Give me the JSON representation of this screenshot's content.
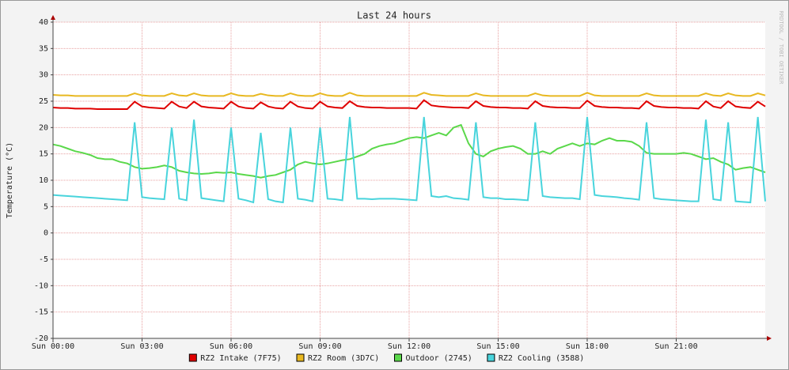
{
  "chart_data": {
    "type": "line",
    "title": "Last 24 hours",
    "y_label": "Temperature (°C)",
    "watermark": "RRDTOOL / TOBI OETIKER",
    "xlim": [
      0,
      24
    ],
    "xticks": [
      {
        "value": 0,
        "label": "Sun 00:00"
      },
      {
        "value": 3,
        "label": "Sun 03:00"
      },
      {
        "value": 6,
        "label": "Sun 06:00"
      },
      {
        "value": 9,
        "label": "Sun 09:00"
      },
      {
        "value": 12,
        "label": "Sun 12:00"
      },
      {
        "value": 15,
        "label": "Sun 15:00"
      },
      {
        "value": 18,
        "label": "Sun 18:00"
      },
      {
        "value": 21,
        "label": "Sun 21:00"
      }
    ],
    "ylim": [
      -20,
      40
    ],
    "yticks": [
      -20,
      -15,
      -10,
      -5,
      0,
      5,
      10,
      15,
      20,
      25,
      30,
      35,
      40
    ],
    "grid": true,
    "legend": "bottom",
    "x": [
      0,
      0.25,
      0.5,
      0.75,
      1,
      1.25,
      1.5,
      1.75,
      2,
      2.25,
      2.5,
      2.75,
      3,
      3.25,
      3.5,
      3.75,
      4,
      4.25,
      4.5,
      4.75,
      5,
      5.25,
      5.5,
      5.75,
      6,
      6.25,
      6.5,
      6.75,
      7,
      7.25,
      7.5,
      7.75,
      8,
      8.25,
      8.5,
      8.75,
      9,
      9.25,
      9.5,
      9.75,
      10,
      10.25,
      10.5,
      10.75,
      11,
      11.25,
      11.5,
      11.75,
      12,
      12.25,
      12.5,
      12.75,
      13,
      13.25,
      13.5,
      13.75,
      14,
      14.25,
      14.5,
      14.75,
      15,
      15.25,
      15.5,
      15.75,
      16,
      16.25,
      16.5,
      16.75,
      17,
      17.25,
      17.5,
      17.75,
      18,
      18.25,
      18.5,
      18.75,
      19,
      19.25,
      19.5,
      19.75,
      20,
      20.25,
      20.5,
      20.75,
      21,
      21.25,
      21.5,
      21.75,
      22,
      22.25,
      22.5,
      22.75,
      23,
      23.25,
      23.5,
      23.75,
      24
    ],
    "series": [
      {
        "name": "RZ2 Intake (7F75)",
        "color": "#e00000",
        "values": [
          23.8,
          23.7,
          23.7,
          23.6,
          23.6,
          23.6,
          23.5,
          23.5,
          23.5,
          23.5,
          23.5,
          24.9,
          24.0,
          23.8,
          23.7,
          23.6,
          24.9,
          24.0,
          23.7,
          24.9,
          24.0,
          23.8,
          23.7,
          23.6,
          24.9,
          24.0,
          23.7,
          23.6,
          24.8,
          24.0,
          23.7,
          23.6,
          24.9,
          24.0,
          23.7,
          23.6,
          24.9,
          24.0,
          23.8,
          23.7,
          25.0,
          24.1,
          23.9,
          23.8,
          23.8,
          23.7,
          23.7,
          23.7,
          23.7,
          23.6,
          25.2,
          24.2,
          24.0,
          23.9,
          23.8,
          23.8,
          23.7,
          25.0,
          24.1,
          23.9,
          23.8,
          23.8,
          23.7,
          23.7,
          23.6,
          25.0,
          24.1,
          23.9,
          23.8,
          23.8,
          23.7,
          23.7,
          25.1,
          24.1,
          23.9,
          23.8,
          23.8,
          23.7,
          23.7,
          23.6,
          25.0,
          24.1,
          23.9,
          23.8,
          23.8,
          23.7,
          23.7,
          23.6,
          25.0,
          24.0,
          23.7,
          25.0,
          24.0,
          23.8,
          23.7,
          24.9,
          24.0
        ]
      },
      {
        "name": "RZ2 Room (3D7C)",
        "color": "#e8b820",
        "values": [
          26.2,
          26.1,
          26.1,
          26.0,
          26.0,
          26.0,
          26.0,
          26.0,
          26.0,
          26.0,
          26.0,
          26.5,
          26.1,
          26.0,
          26.0,
          26.0,
          26.5,
          26.1,
          26.0,
          26.5,
          26.1,
          26.0,
          26.0,
          26.0,
          26.5,
          26.1,
          26.0,
          26.0,
          26.4,
          26.1,
          26.0,
          26.0,
          26.5,
          26.1,
          26.0,
          26.0,
          26.5,
          26.1,
          26.0,
          26.0,
          26.6,
          26.1,
          26.0,
          26.0,
          26.0,
          26.0,
          26.0,
          26.0,
          26.0,
          26.0,
          26.6,
          26.2,
          26.1,
          26.0,
          26.0,
          26.0,
          26.0,
          26.5,
          26.1,
          26.0,
          26.0,
          26.0,
          26.0,
          26.0,
          26.0,
          26.5,
          26.1,
          26.0,
          26.0,
          26.0,
          26.0,
          26.0,
          26.6,
          26.1,
          26.0,
          26.0,
          26.0,
          26.0,
          26.0,
          26.0,
          26.5,
          26.1,
          26.0,
          26.0,
          26.0,
          26.0,
          26.0,
          26.0,
          26.5,
          26.1,
          26.0,
          26.5,
          26.1,
          26.0,
          26.0,
          26.5,
          26.1
        ]
      },
      {
        "name": "Outdoor (2745)",
        "color": "#5ad84a",
        "values": [
          16.8,
          16.5,
          16.0,
          15.5,
          15.2,
          14.8,
          14.2,
          14.0,
          14.0,
          13.5,
          13.2,
          12.5,
          12.2,
          12.3,
          12.5,
          12.8,
          12.5,
          11.8,
          11.5,
          11.3,
          11.2,
          11.3,
          11.5,
          11.4,
          11.5,
          11.2,
          11.0,
          10.8,
          10.5,
          10.8,
          11.0,
          11.5,
          12.0,
          13.0,
          13.5,
          13.2,
          13.0,
          13.2,
          13.5,
          13.8,
          14.0,
          14.5,
          15.0,
          16.0,
          16.5,
          16.8,
          17.0,
          17.5,
          18.0,
          18.2,
          18.0,
          18.5,
          19.0,
          18.5,
          20.0,
          20.5,
          17.0,
          15.0,
          14.5,
          15.5,
          16.0,
          16.3,
          16.5,
          16.0,
          15.0,
          15.0,
          15.5,
          15.0,
          16.0,
          16.5,
          17.0,
          16.5,
          17.0,
          16.8,
          17.5,
          18.0,
          17.5,
          17.5,
          17.3,
          16.5,
          15.2,
          15.0,
          15.0,
          15.0,
          15.0,
          15.2,
          15.0,
          14.5,
          14.0,
          14.2,
          13.5,
          13.0,
          12.0,
          12.3,
          12.5,
          12.0,
          11.5
        ]
      },
      {
        "name": "RZ2 Cooling (3588)",
        "color": "#48d4dc",
        "values": [
          7.2,
          7.1,
          7.0,
          6.9,
          6.8,
          6.7,
          6.6,
          6.5,
          6.4,
          6.3,
          6.2,
          21,
          6.8,
          6.6,
          6.5,
          6.4,
          20,
          6.5,
          6.2,
          21.5,
          6.6,
          6.4,
          6.2,
          6.0,
          20,
          6.5,
          6.2,
          5.8,
          19,
          6.4,
          6.0,
          5.8,
          20,
          6.5,
          6.3,
          6.0,
          20,
          6.5,
          6.4,
          6.2,
          22,
          6.5,
          6.5,
          6.4,
          6.5,
          6.5,
          6.5,
          6.4,
          6.3,
          6.2,
          22,
          7.0,
          6.8,
          7.0,
          6.6,
          6.5,
          6.3,
          21,
          6.8,
          6.6,
          6.6,
          6.4,
          6.4,
          6.3,
          6.2,
          21,
          7.0,
          6.8,
          6.7,
          6.6,
          6.6,
          6.4,
          22,
          7.2,
          7.0,
          6.9,
          6.8,
          6.6,
          6.5,
          6.3,
          21,
          6.6,
          6.4,
          6.3,
          6.2,
          6.1,
          6.0,
          6.0,
          21.5,
          6.4,
          6.2,
          21,
          6.0,
          5.9,
          5.8,
          22,
          6.0
        ]
      }
    ]
  }
}
